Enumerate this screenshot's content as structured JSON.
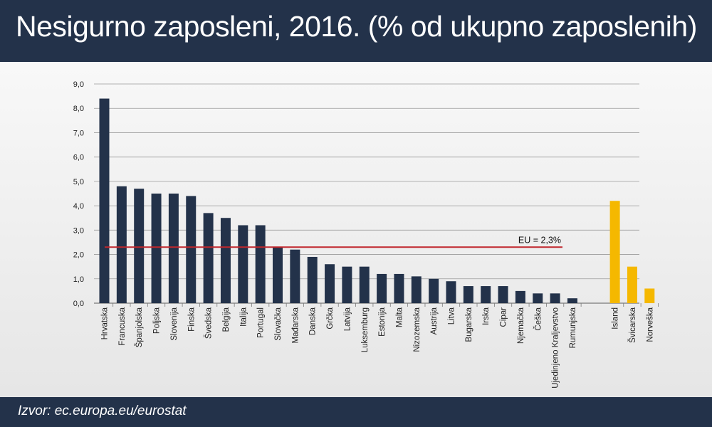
{
  "header": {
    "title": "Nesigurno zaposleni, 2016. (% od ukupno zaposlenih)"
  },
  "footer": {
    "source": "Izvor: ec.europa.eu/eurostat"
  },
  "colors": {
    "header_bg": "#23324a",
    "eu_bar": "#23324a",
    "non_eu_bar": "#f5b800",
    "eu_line": "#c0272d",
    "grid": "#9a9a9a"
  },
  "chart_data": {
    "type": "bar",
    "title": "Nesigurno zaposleni, 2016. (% od ukupno zaposlenih)",
    "ylim": [
      0,
      9
    ],
    "yticks": [
      "0,0",
      "1,0",
      "2,0",
      "3,0",
      "4,0",
      "5,0",
      "6,0",
      "7,0",
      "8,0",
      "9,0"
    ],
    "grid": true,
    "series": [
      {
        "group": "EU",
        "color": "#23324a",
        "categories": [
          "Hrvatska",
          "Francuska",
          "Španjolska",
          "Poljska",
          "Slovenija",
          "Finska",
          "Švedska",
          "Belgija",
          "Italija",
          "Portugal",
          "Slovačka",
          "Mađarska",
          "Danska",
          "Grčka",
          "Latvija",
          "Luksemburg",
          "Estonija",
          "Malta",
          "Nizozemska",
          "Austrija",
          "Litva",
          "Bugarska",
          "Irska",
          "Cipar",
          "Njemačka",
          "Češka",
          "Ujedinjeno Kraljevstvo",
          "Rumunjska"
        ],
        "values": [
          8.4,
          4.8,
          4.7,
          4.5,
          4.5,
          4.4,
          3.7,
          3.5,
          3.2,
          3.2,
          2.3,
          2.2,
          1.9,
          1.6,
          1.5,
          1.5,
          1.2,
          1.2,
          1.1,
          1.0,
          0.9,
          0.7,
          0.7,
          0.7,
          0.5,
          0.4,
          0.4,
          0.2
        ]
      },
      {
        "group": "non-EU",
        "color": "#f5b800",
        "categories": [
          "Island",
          "Švicarska",
          "Norveška"
        ],
        "values": [
          4.2,
          1.5,
          0.6
        ]
      }
    ],
    "reference_line": {
      "label": "EU = 2,3%",
      "value": 2.3,
      "color": "#c0272d"
    }
  }
}
